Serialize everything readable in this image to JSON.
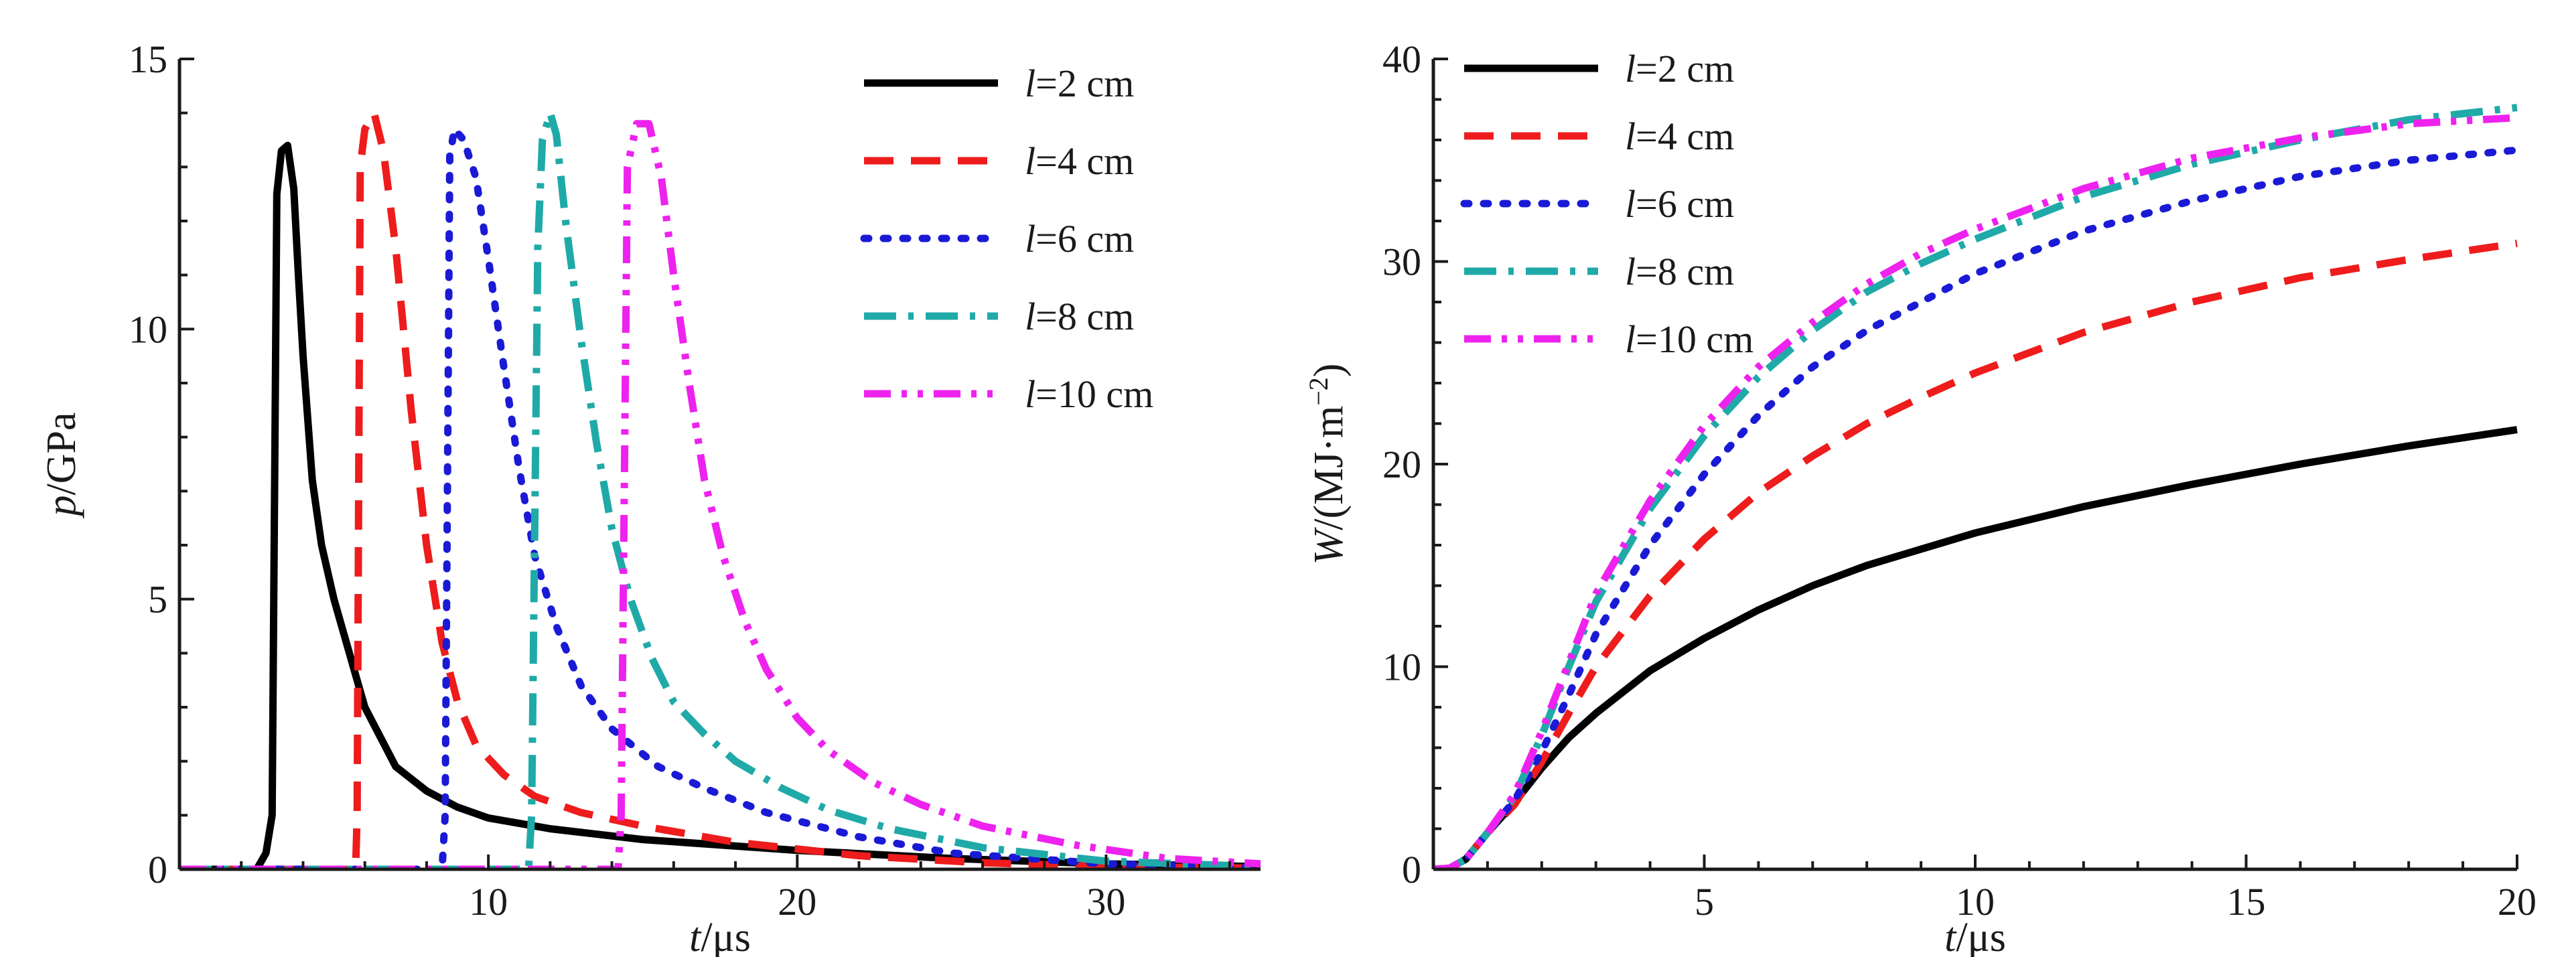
{
  "colors": {
    "l2": "#000000",
    "l4": "#ee1c1c",
    "l6": "#1a1ad6",
    "l8": "#1faaa8",
    "l10": "#ee22ee",
    "l8_tail": "#22e8ee"
  },
  "chart_data": [
    {
      "id": "pressure",
      "type": "line",
      "xlabel": {
        "italic": "t",
        "rest": "/μs"
      },
      "ylabel": {
        "italic": "p",
        "rest": "/GPa"
      },
      "xlim": [
        0,
        35
      ],
      "ylim": [
        0,
        15
      ],
      "xticks": [
        10,
        20,
        30
      ],
      "yticks": [
        0,
        5,
        10,
        15
      ],
      "grid": false,
      "legend_position": "top-right",
      "series": [
        {
          "name": "l=2 cm",
          "label_italic": "l",
          "label_rest": "=2 cm",
          "color_key": "l2",
          "dash": "solid",
          "x": [
            0,
            2.5,
            2.8,
            3.0,
            3.15,
            3.3,
            3.5,
            3.7,
            3.85,
            4.0,
            4.3,
            4.6,
            5.0,
            5.5,
            6.0,
            7.0,
            8.0,
            9.0,
            10.0,
            12.0,
            15.0,
            20.0,
            25.0,
            30.0,
            35.0
          ],
          "y": [
            0,
            0,
            0.3,
            1.0,
            12.5,
            13.3,
            13.4,
            12.6,
            11.0,
            9.5,
            7.2,
            6.0,
            5.0,
            4.0,
            3.0,
            1.9,
            1.45,
            1.15,
            0.95,
            0.75,
            0.55,
            0.35,
            0.2,
            0.1,
            0.05
          ]
        },
        {
          "name": "l=4 cm",
          "label_italic": "l",
          "label_rest": "=4 cm",
          "color_key": "l4",
          "dash": "dash",
          "x": [
            0,
            5.7,
            5.75,
            5.85,
            6.0,
            6.3,
            6.6,
            7.0,
            7.5,
            8.0,
            8.5,
            9.0,
            9.6,
            10.5,
            11.5,
            13.0,
            15.0,
            18.0,
            22.0,
            26.0,
            30.0,
            35.0
          ],
          "y": [
            0,
            0,
            1.0,
            13.0,
            13.7,
            14.0,
            13.3,
            11.5,
            8.5,
            6.0,
            4.2,
            3.1,
            2.3,
            1.75,
            1.35,
            1.05,
            0.8,
            0.5,
            0.25,
            0.12,
            0.05,
            0.02
          ]
        },
        {
          "name": "l=6 cm",
          "label_italic": "l",
          "label_rest": "=6 cm",
          "color_key": "l6",
          "dash": "dot",
          "x": [
            0,
            8.5,
            8.6,
            8.75,
            8.9,
            9.2,
            9.6,
            10.0,
            10.5,
            11.0,
            11.5,
            12.2,
            13.0,
            14.0,
            15.5,
            17.0,
            19.0,
            22.0,
            25.0,
            30.0,
            35.0
          ],
          "y": [
            0,
            0,
            1.0,
            13.2,
            13.7,
            13.5,
            12.8,
            11.3,
            9.3,
            7.4,
            5.8,
            4.5,
            3.4,
            2.6,
            1.9,
            1.5,
            1.05,
            0.6,
            0.3,
            0.1,
            0.03
          ]
        },
        {
          "name": "l=8 cm",
          "label_italic": "l",
          "label_rest": "=8 cm",
          "color_key": "l8",
          "dash": "dashdot",
          "x": [
            0,
            11.3,
            11.4,
            11.6,
            11.75,
            12.0,
            12.2,
            12.5,
            13.0,
            13.5,
            14.0,
            14.6,
            15.3,
            16.0,
            17.0,
            18.0,
            19.5,
            21.0,
            23.0,
            26.0,
            30.0,
            35.0
          ],
          "y": [
            0,
            0,
            1.0,
            11.5,
            13.5,
            14.0,
            13.6,
            12.0,
            9.8,
            7.9,
            6.3,
            5.0,
            3.9,
            3.1,
            2.5,
            2.0,
            1.5,
            1.1,
            0.75,
            0.4,
            0.15,
            0.05
          ]
        },
        {
          "name": "l=10 cm",
          "label_italic": "l",
          "label_rest": "=10 cm",
          "color_key": "l10",
          "dash": "dashdotdot",
          "x": [
            0,
            14.2,
            14.3,
            14.5,
            14.8,
            15.2,
            15.6,
            16.0,
            16.5,
            17.0,
            17.6,
            18.3,
            19.0,
            20.0,
            21.0,
            22.5,
            24.0,
            26.0,
            29.0,
            32.0,
            35.0
          ],
          "y": [
            0,
            0,
            1.0,
            13.0,
            13.8,
            13.8,
            12.8,
            11.0,
            9.0,
            7.2,
            5.8,
            4.6,
            3.7,
            2.8,
            2.2,
            1.6,
            1.2,
            0.8,
            0.45,
            0.2,
            0.1
          ]
        }
      ]
    },
    {
      "id": "energy",
      "type": "line",
      "xlabel": {
        "italic": "t",
        "rest": "/μs"
      },
      "ylabel": {
        "italic": "W",
        "rest": "/(MJ·m",
        "sup": "−2",
        "tail": ")"
      },
      "xlim": [
        0,
        20
      ],
      "ylim": [
        0,
        40
      ],
      "xticks": [
        5,
        10,
        15,
        20
      ],
      "yticks": [
        0,
        10,
        20,
        30,
        40
      ],
      "grid": false,
      "legend_position": "top-left",
      "series": [
        {
          "name": "l=2 cm",
          "label_italic": "l",
          "label_rest": "=2 cm",
          "color_key": "l2",
          "dash": "solid",
          "x": [
            0,
            0.3,
            0.6,
            1.0,
            1.5,
            2.0,
            2.5,
            3.0,
            4.0,
            5.0,
            6.0,
            7.0,
            8.0,
            9.0,
            10.0,
            12.0,
            14.0,
            16.0,
            18.0,
            20.0
          ],
          "y": [
            0,
            0.05,
            0.5,
            1.8,
            3.3,
            5.0,
            6.5,
            7.7,
            9.8,
            11.4,
            12.8,
            14.0,
            15.0,
            15.8,
            16.6,
            17.9,
            19.0,
            20.0,
            20.9,
            21.7
          ]
        },
        {
          "name": "l=4 cm",
          "label_italic": "l",
          "label_rest": "=4 cm",
          "color_key": "l4",
          "dash": "dash",
          "x": [
            0,
            0.3,
            0.6,
            1.0,
            1.5,
            2.0,
            2.5,
            3.0,
            4.0,
            5.0,
            6.0,
            7.0,
            8.0,
            9.0,
            10.0,
            12.0,
            14.0,
            16.0,
            18.0,
            20.0
          ],
          "y": [
            0,
            0.05,
            0.5,
            1.8,
            3.2,
            5.3,
            7.7,
            10.0,
            13.5,
            16.3,
            18.6,
            20.4,
            22.0,
            23.3,
            24.5,
            26.5,
            28.0,
            29.2,
            30.1,
            30.9
          ]
        },
        {
          "name": "l=6 cm",
          "label_italic": "l",
          "label_rest": "=6 cm",
          "color_key": "l6",
          "dash": "dot",
          "x": [
            0,
            0.3,
            0.6,
            1.0,
            1.5,
            2.0,
            2.5,
            3.0,
            4.0,
            5.0,
            6.0,
            7.0,
            8.0,
            9.0,
            10.0,
            12.0,
            14.0,
            16.0,
            18.0,
            20.0
          ],
          "y": [
            0,
            0.05,
            0.5,
            1.8,
            3.4,
            5.8,
            8.6,
            11.6,
            16.0,
            19.5,
            22.4,
            24.8,
            26.6,
            28.0,
            29.4,
            31.5,
            33.0,
            34.2,
            35.0,
            35.5
          ]
        },
        {
          "name": "l=8 cm",
          "label_italic": "l",
          "label_rest": "=8 cm",
          "color_key": "l8",
          "dash": "dashdot",
          "x": [
            0,
            0.3,
            0.6,
            1.0,
            1.5,
            2.0,
            2.5,
            3.0,
            4.0,
            5.0,
            6.0,
            7.0,
            8.0,
            9.0,
            10.0,
            12.0,
            14.0,
            16.0,
            18.0,
            20.0
          ],
          "y": [
            0,
            0.05,
            0.5,
            1.8,
            3.6,
            6.6,
            10.0,
            13.2,
            17.8,
            21.4,
            24.3,
            26.6,
            28.5,
            29.9,
            31.1,
            33.2,
            34.8,
            36.0,
            37.0,
            37.6
          ]
        },
        {
          "name": "l=10 cm",
          "label_italic": "l",
          "label_rest": "=10 cm",
          "color_key": "l10",
          "dash": "dashdotdot",
          "x": [
            0,
            0.3,
            0.6,
            1.0,
            1.5,
            2.0,
            2.5,
            3.0,
            4.0,
            5.0,
            6.0,
            7.0,
            8.0,
            9.0,
            10.0,
            12.0,
            14.0,
            16.0,
            18.0,
            20.0
          ],
          "y": [
            0,
            0.05,
            0.5,
            1.8,
            3.7,
            6.8,
            10.2,
            13.6,
            18.2,
            21.9,
            24.8,
            27.0,
            28.9,
            30.4,
            31.6,
            33.6,
            35.1,
            36.1,
            36.8,
            37.1
          ]
        }
      ]
    }
  ]
}
